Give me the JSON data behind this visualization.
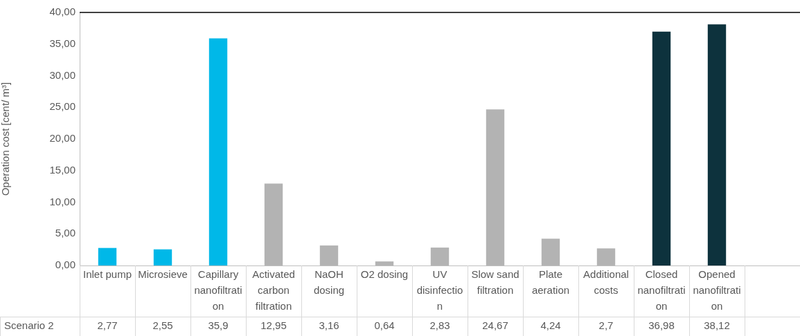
{
  "chart_data": {
    "type": "bar",
    "ylabel": "Operation cost [cent/ m³]",
    "categories": [
      "Inlet pump",
      "Microsieve",
      "Capillary nanofiltration",
      "Activated carbon filtration",
      "NaOH dosing",
      "O2 dosing",
      "UV disinfection",
      "Slow sand filtration",
      "Plate aeration",
      "Additional costs",
      "Closed nanofiltration",
      "Opened nanofiltration",
      null
    ],
    "series": [
      {
        "name": "Scenario 2",
        "values": [
          2.77,
          2.55,
          35.9,
          12.95,
          3.16,
          0.64,
          2.83,
          24.67,
          4.24,
          2.7,
          36.98,
          38.12,
          null
        ],
        "colors": [
          "#00b8e8",
          "#00b8e8",
          "#00b8e8",
          "#b3b3b3",
          "#b3b3b3",
          "#b3b3b3",
          "#b3b3b3",
          "#b3b3b3",
          "#b3b3b3",
          "#b3b3b3",
          "#0d323d",
          "#0d323d",
          "#0d323d"
        ],
        "value_labels": [
          "2,77",
          "2,55",
          "35,9",
          "12,95",
          "3,16",
          "0,64",
          "2,83",
          "24,67",
          "4,24",
          "2,7",
          "36,98",
          "38,12",
          null
        ]
      }
    ],
    "ylim": [
      0,
      40
    ],
    "yticks": [
      {
        "value": 0,
        "label": "0,00"
      },
      {
        "value": 5,
        "label": "5,00"
      },
      {
        "value": 10,
        "label": "10,00"
      },
      {
        "value": 15,
        "label": "15,00"
      },
      {
        "value": 20,
        "label": "20,00"
      },
      {
        "value": 25,
        "label": "25,00"
      },
      {
        "value": 30,
        "label": "30,00"
      },
      {
        "value": 35,
        "label": "35,00"
      },
      {
        "value": 40,
        "label": "40,00"
      }
    ],
    "grid": false,
    "legend": false
  }
}
